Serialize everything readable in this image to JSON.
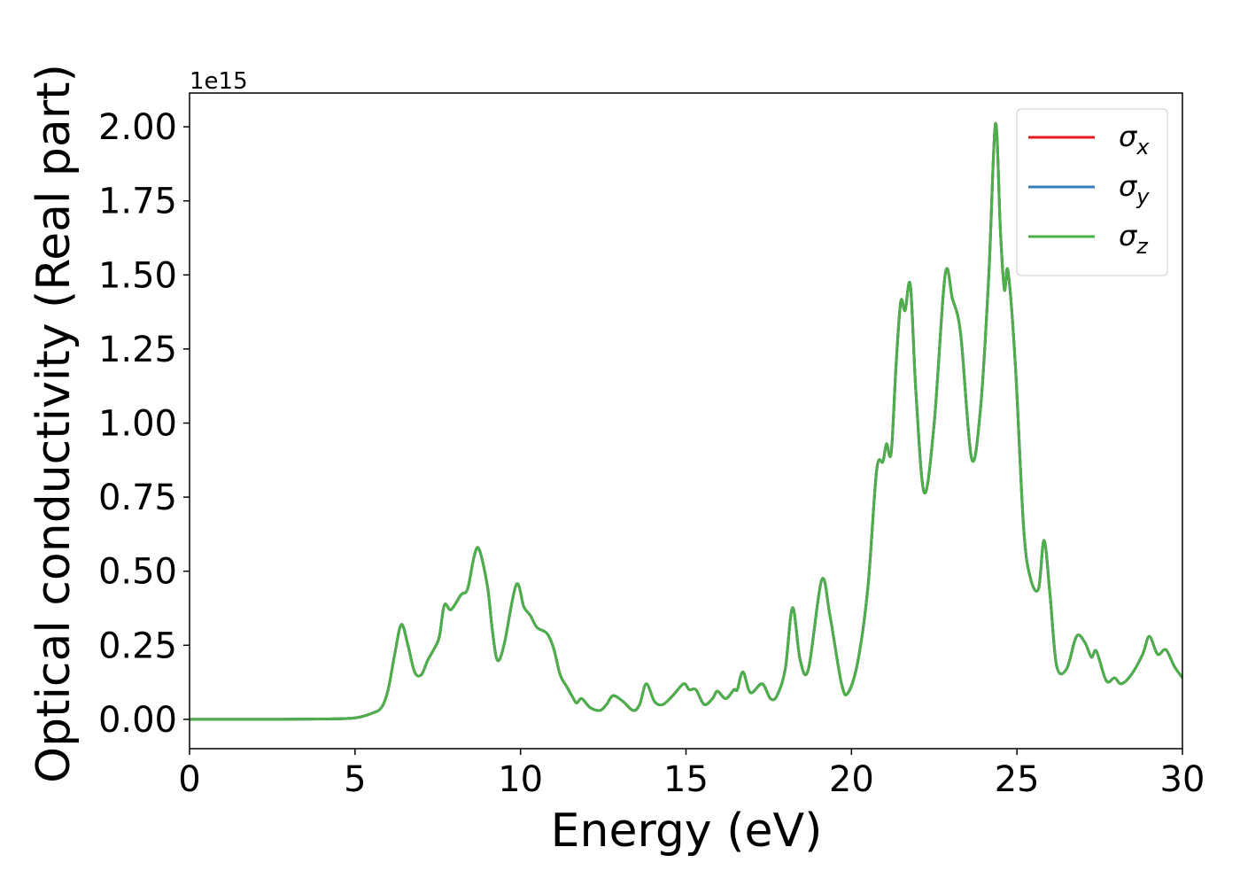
{
  "chart_data": {
    "type": "line",
    "x_label": "Energy (eV)",
    "y_label": "Optical conductivity (Real part)",
    "y_offset_label": "1e15",
    "x": [
      0,
      2,
      4,
      5,
      5.5,
      5.8,
      6,
      6.2,
      6.4,
      6.6,
      6.8,
      7,
      7.2,
      7.4,
      7.55,
      7.7,
      7.9,
      8.2,
      8.4,
      8.6,
      8.75,
      9.0,
      9.15,
      9.3,
      9.5,
      9.87,
      10.1,
      10.3,
      10.5,
      10.8,
      11.0,
      11.2,
      11.4,
      11.6,
      11.7,
      11.85,
      12.1,
      12.4,
      12.6,
      12.8,
      13.1,
      13.4,
      13.6,
      13.8,
      14.05,
      14.3,
      14.6,
      14.93,
      15.1,
      15.3,
      15.55,
      15.8,
      15.95,
      16.2,
      16.45,
      16.55,
      16.72,
      16.95,
      17.3,
      17.55,
      17.75,
      18.0,
      18.22,
      18.45,
      18.7,
      19.1,
      19.35,
      19.7,
      19.9,
      20.2,
      20.5,
      20.76,
      20.95,
      21.06,
      21.2,
      21.35,
      21.49,
      21.62,
      21.78,
      21.95,
      22.2,
      22.5,
      22.83,
      23.05,
      23.3,
      23.63,
      23.9,
      24.15,
      24.35,
      24.5,
      24.62,
      24.73,
      24.95,
      25.2,
      25.4,
      25.65,
      25.82,
      26.0,
      26.2,
      26.5,
      26.8,
      27.05,
      27.25,
      27.4,
      27.7,
      27.95,
      28.15,
      28.45,
      28.8,
      29.0,
      29.25,
      29.5,
      29.75,
      30
    ],
    "series": [
      {
        "name": "σx",
        "color": "#e41a1c",
        "values": [
          0,
          0,
          0.001,
          0.005,
          0.02,
          0.04,
          0.1,
          0.22,
          0.32,
          0.25,
          0.16,
          0.15,
          0.2,
          0.24,
          0.28,
          0.386,
          0.37,
          0.42,
          0.44,
          0.55,
          0.574,
          0.45,
          0.3,
          0.2,
          0.25,
          0.454,
          0.38,
          0.35,
          0.31,
          0.29,
          0.24,
          0.15,
          0.11,
          0.07,
          0.055,
          0.07,
          0.04,
          0.03,
          0.05,
          0.08,
          0.06,
          0.03,
          0.05,
          0.12,
          0.06,
          0.05,
          0.08,
          0.12,
          0.1,
          0.1,
          0.05,
          0.07,
          0.095,
          0.07,
          0.1,
          0.1,
          0.16,
          0.09,
          0.12,
          0.07,
          0.08,
          0.17,
          0.377,
          0.2,
          0.17,
          0.47,
          0.35,
          0.12,
          0.09,
          0.2,
          0.45,
          0.84,
          0.87,
          0.93,
          0.9,
          1.2,
          1.41,
          1.38,
          1.465,
          1.1,
          0.765,
          1.0,
          1.5,
          1.42,
          1.3,
          0.88,
          1.05,
          1.5,
          2.01,
          1.65,
          1.45,
          1.513,
          1.2,
          0.65,
          0.48,
          0.44,
          0.604,
          0.42,
          0.18,
          0.17,
          0.28,
          0.26,
          0.21,
          0.23,
          0.13,
          0.14,
          0.12,
          0.15,
          0.22,
          0.28,
          0.22,
          0.235,
          0.18,
          0.14
        ]
      },
      {
        "name": "σy",
        "color": "#377eb8",
        "values": [
          0,
          0,
          0.001,
          0.005,
          0.02,
          0.04,
          0.1,
          0.22,
          0.32,
          0.25,
          0.16,
          0.15,
          0.2,
          0.24,
          0.28,
          0.386,
          0.37,
          0.42,
          0.44,
          0.55,
          0.574,
          0.45,
          0.3,
          0.2,
          0.25,
          0.454,
          0.38,
          0.35,
          0.31,
          0.29,
          0.24,
          0.15,
          0.11,
          0.07,
          0.055,
          0.07,
          0.04,
          0.03,
          0.05,
          0.08,
          0.06,
          0.03,
          0.05,
          0.12,
          0.06,
          0.05,
          0.08,
          0.12,
          0.1,
          0.1,
          0.05,
          0.07,
          0.095,
          0.07,
          0.1,
          0.1,
          0.16,
          0.09,
          0.12,
          0.07,
          0.08,
          0.17,
          0.377,
          0.2,
          0.17,
          0.47,
          0.35,
          0.12,
          0.09,
          0.2,
          0.45,
          0.84,
          0.87,
          0.93,
          0.9,
          1.2,
          1.41,
          1.38,
          1.465,
          1.1,
          0.765,
          1.0,
          1.5,
          1.42,
          1.3,
          0.88,
          1.05,
          1.5,
          2.01,
          1.65,
          1.45,
          1.513,
          1.2,
          0.65,
          0.48,
          0.44,
          0.604,
          0.42,
          0.18,
          0.17,
          0.28,
          0.26,
          0.21,
          0.23,
          0.13,
          0.14,
          0.12,
          0.15,
          0.22,
          0.28,
          0.22,
          0.235,
          0.18,
          0.14
        ]
      },
      {
        "name": "σz",
        "color": "#4daf4a",
        "values": [
          0,
          0,
          0.001,
          0.005,
          0.02,
          0.04,
          0.1,
          0.22,
          0.32,
          0.25,
          0.16,
          0.15,
          0.2,
          0.24,
          0.28,
          0.386,
          0.37,
          0.42,
          0.44,
          0.55,
          0.574,
          0.45,
          0.3,
          0.2,
          0.25,
          0.454,
          0.38,
          0.35,
          0.31,
          0.29,
          0.24,
          0.15,
          0.11,
          0.07,
          0.055,
          0.07,
          0.04,
          0.03,
          0.05,
          0.08,
          0.06,
          0.03,
          0.05,
          0.12,
          0.06,
          0.05,
          0.08,
          0.12,
          0.1,
          0.1,
          0.05,
          0.07,
          0.095,
          0.07,
          0.1,
          0.1,
          0.16,
          0.09,
          0.12,
          0.07,
          0.08,
          0.17,
          0.377,
          0.2,
          0.17,
          0.47,
          0.35,
          0.12,
          0.09,
          0.2,
          0.45,
          0.84,
          0.87,
          0.93,
          0.9,
          1.2,
          1.41,
          1.38,
          1.465,
          1.1,
          0.765,
          1.0,
          1.5,
          1.42,
          1.3,
          0.88,
          1.05,
          1.5,
          2.01,
          1.65,
          1.45,
          1.513,
          1.2,
          0.65,
          0.48,
          0.44,
          0.604,
          0.42,
          0.18,
          0.17,
          0.28,
          0.26,
          0.21,
          0.23,
          0.13,
          0.14,
          0.12,
          0.15,
          0.22,
          0.28,
          0.22,
          0.235,
          0.18,
          0.14
        ]
      }
    ],
    "xlim": [
      0,
      30
    ],
    "xticks": [
      0,
      5,
      10,
      15,
      20,
      25,
      30
    ],
    "ylim": [
      -0.099,
      2.114
    ],
    "yticks": [
      {
        "value": 0,
        "label": "0.00"
      },
      {
        "value": 0.25,
        "label": "0.25"
      },
      {
        "value": 0.5,
        "label": "0.50"
      },
      {
        "value": 0.75,
        "label": "0.75"
      },
      {
        "value": 1,
        "label": "1.00"
      },
      {
        "value": 1.25,
        "label": "1.25"
      },
      {
        "value": 1.5,
        "label": "1.50"
      },
      {
        "value": 1.75,
        "label": "1.75"
      },
      {
        "value": 2,
        "label": "2.00"
      }
    ],
    "grid": false,
    "legend": "upper right"
  }
}
